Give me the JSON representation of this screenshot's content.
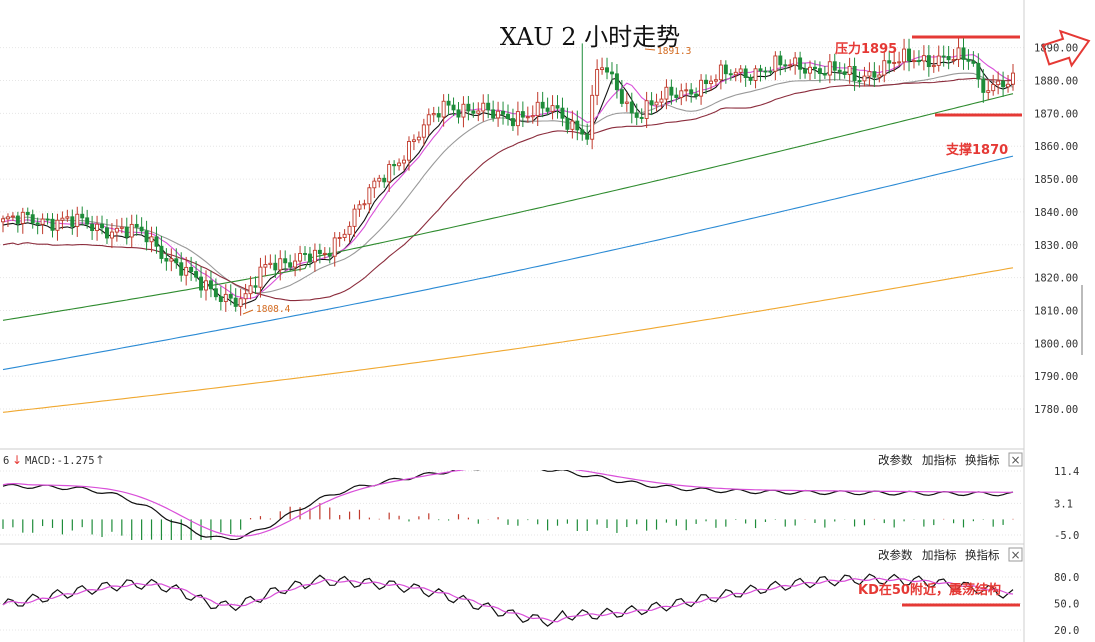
{
  "chart_data": [
    {
      "type": "candlestick",
      "title": "XAU 2 小时走势",
      "y_ticks": [
        "1890.00",
        "1880.00",
        "1870.00",
        "1860.00",
        "1850.00",
        "1840.00",
        "1830.00",
        "1820.00",
        "1810.00",
        "1800.00",
        "1790.00",
        "1780.00"
      ],
      "ylim": [
        1773,
        1900
      ],
      "price_range": {
        "start": 1837,
        "low": 1808.4,
        "high": 1891.3,
        "end": 1879
      },
      "annotations": {
        "high_label": "1891.3",
        "low_label": "1808.4",
        "resistance": {
          "label": "压力1895",
          "value": 1895
        },
        "support": {
          "label": "支撑1870",
          "value": 1870
        }
      },
      "moving_averages": [
        {
          "color": "#111111",
          "start": 1836,
          "end": 1879
        },
        {
          "color": "#d94fd9",
          "start": 1837,
          "end": 1880
        },
        {
          "color": "#999999",
          "start": 1838,
          "end": 1878
        },
        {
          "color": "#8b2c3c",
          "start": 1830,
          "end": 1880
        },
        {
          "color": "#2e8b2e",
          "start": 1807,
          "end": 1876
        },
        {
          "color": "#2a8ad4",
          "start": 1792,
          "end": 1857
        },
        {
          "color": "#f0a830",
          "start": 1779,
          "end": 1823
        }
      ],
      "colors": {
        "up": "#c0392b",
        "down": "#1e8c3a",
        "annotation": "#e53935"
      },
      "grid": true
    },
    {
      "type": "bar",
      "title": "MACD",
      "label": "MACD:-1.275",
      "y_ticks": [
        "11.4",
        "3.1",
        "-5.0"
      ],
      "ylim": [
        -5.0,
        11.4
      ],
      "series": [
        {
          "color": "#111111"
        },
        {
          "color": "#d94fd9"
        }
      ]
    },
    {
      "type": "line",
      "title": "KD",
      "y_ticks": [
        "80.0",
        "50.0",
        "20.0"
      ],
      "ylim": [
        20,
        80
      ],
      "series": [
        {
          "color": "#111111"
        },
        {
          "color": "#d94fd9"
        }
      ],
      "annotation": "KD在50附近，震荡结构"
    }
  ],
  "panel_controls": {
    "change_params": "改参数",
    "add_indicator": "加指标",
    "switch_indicator": "换指标",
    "close": "×"
  },
  "macd_prefix": "6",
  "icons": {
    "arrow_down": "arrow-down-icon",
    "arrow_up": "arrow-up-icon",
    "big_arrow": "right-arrow-icon"
  }
}
